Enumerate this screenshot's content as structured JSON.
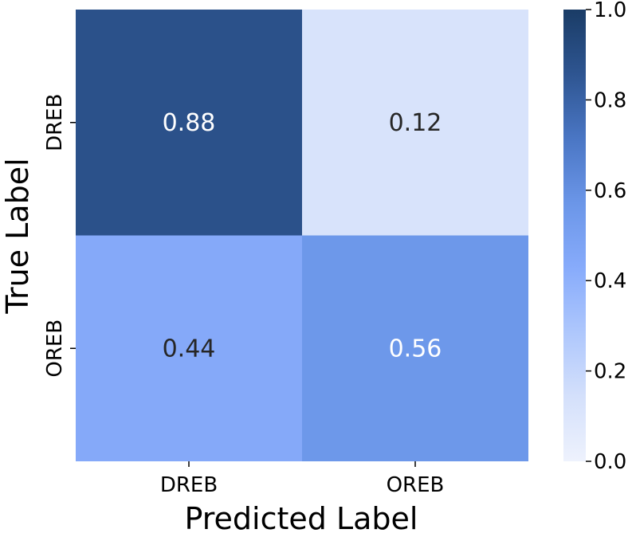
{
  "chart_data": {
    "type": "heatmap",
    "title": "",
    "xlabel": "Predicted Label",
    "ylabel": "True Label",
    "x_categories": [
      "DREB",
      "OREB"
    ],
    "y_categories": [
      "DREB",
      "OREB"
    ],
    "values": [
      [
        0.88,
        0.12
      ],
      [
        0.44,
        0.56
      ]
    ],
    "cell_labels": [
      [
        "0.88",
        "0.12"
      ],
      [
        "0.44",
        "0.56"
      ]
    ],
    "colorbar": {
      "range": [
        0.0,
        1.0
      ],
      "ticks": [
        "0.0",
        "0.2",
        "0.4",
        "0.6",
        "0.8",
        "1.0"
      ],
      "colors": [
        "#eef2fd",
        "#d4e0fb",
        "#aec7fc",
        "#87abfb",
        "#6b96e8",
        "#4a76c4",
        "#2e5591",
        "#1a3c66"
      ]
    },
    "text_colors": {
      "light": "#ffffff",
      "dark": "#262626"
    }
  }
}
